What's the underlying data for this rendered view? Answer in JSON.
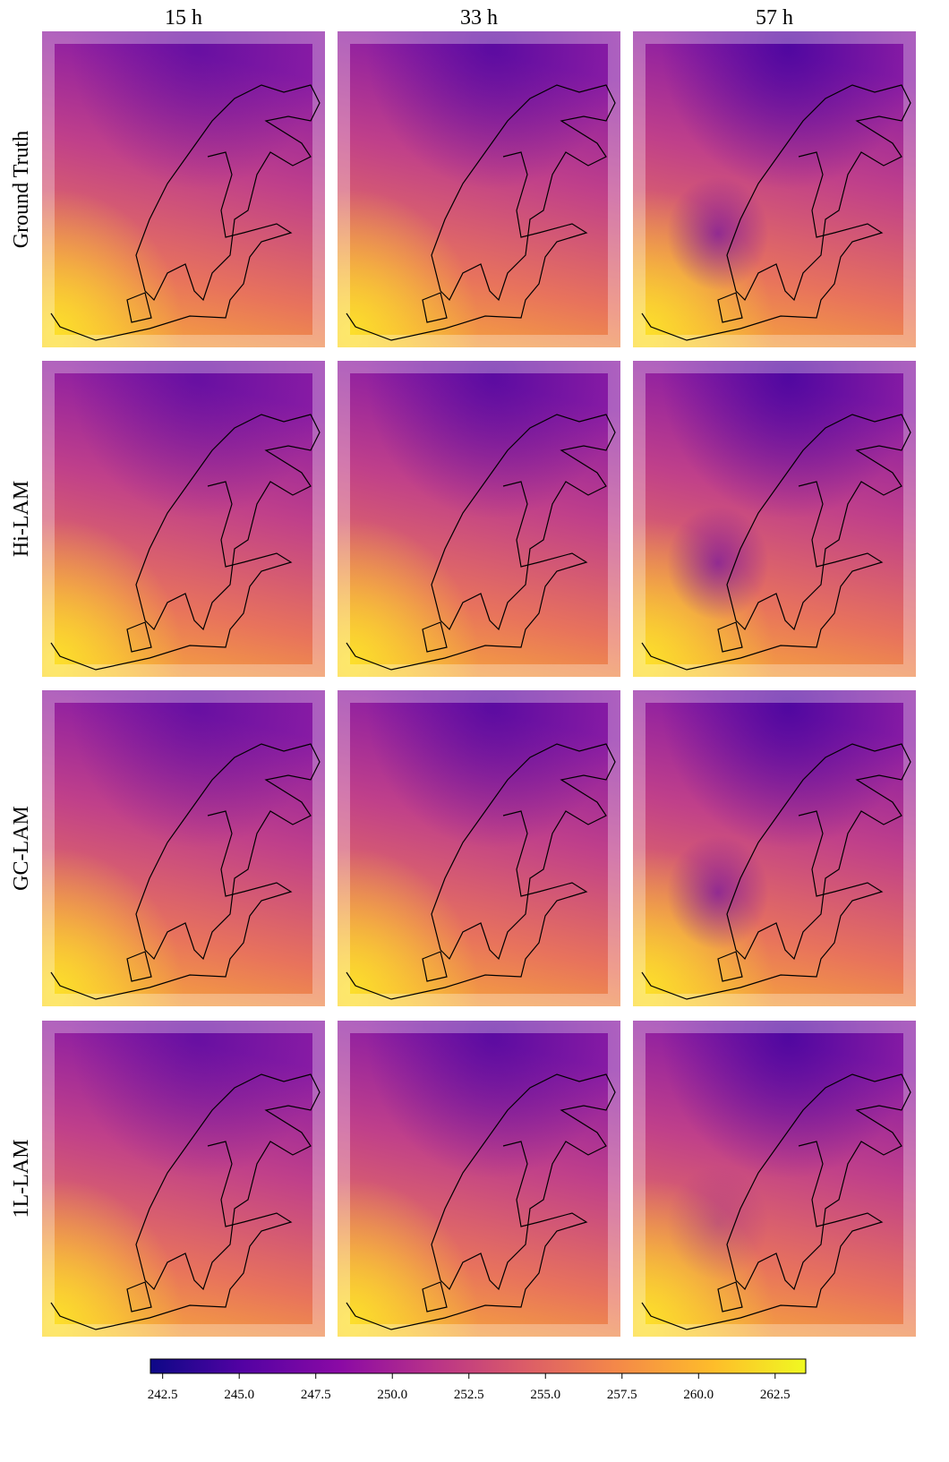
{
  "columns": [
    "15 h",
    "33 h",
    "57 h"
  ],
  "rows": [
    "Ground Truth",
    "Hi-LAM",
    "GC-LAM",
    "1L-LAM"
  ],
  "colorbar": {
    "type": "colorbar",
    "xlim": [
      242.1,
      263.5
    ],
    "xticks": [
      242.5,
      {
        "value": 245,
        "label": "245.0"
      },
      247.5,
      {
        "value": 250,
        "label": "250.0"
      },
      252.5,
      {
        "value": 255,
        "label": "255.0"
      },
      257.5,
      {
        "value": 260,
        "label": "260.0"
      },
      262.5
    ]
  }
}
